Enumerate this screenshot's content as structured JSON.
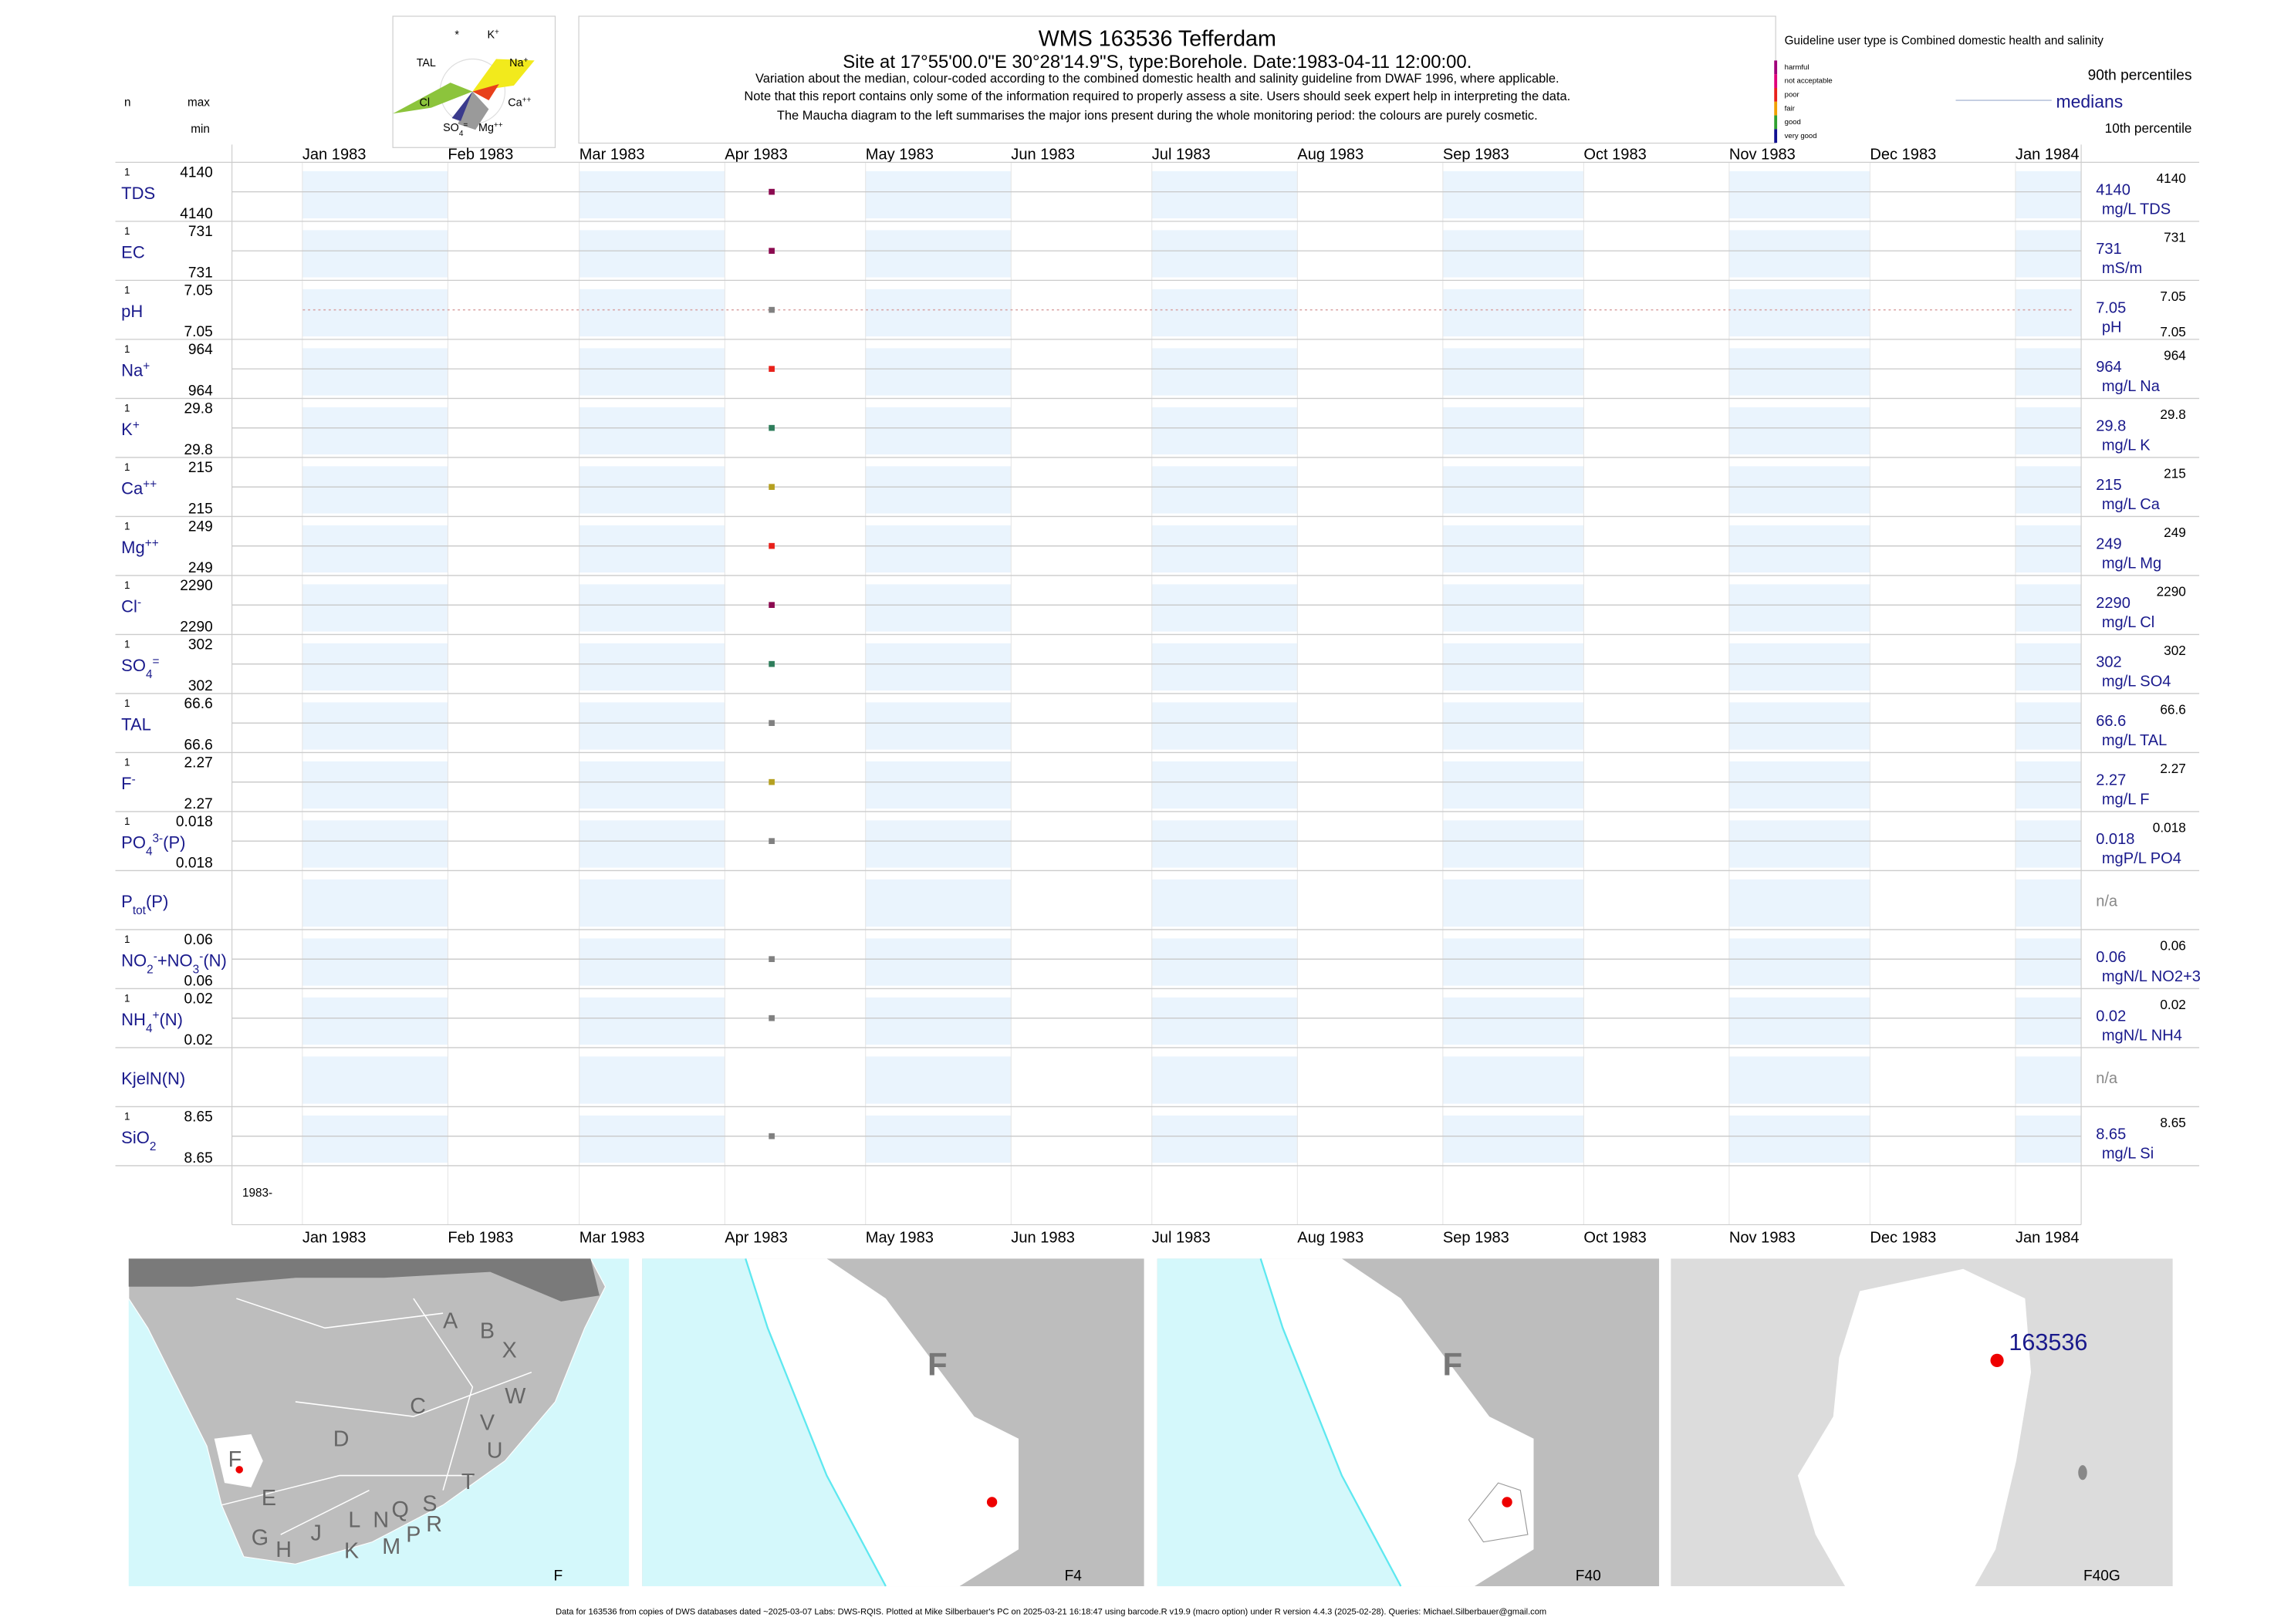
{
  "header": {
    "title": "WMS 163536  Tefferdam",
    "subtitle": "Site at 17°55'00.0\"E 30°28'14.9\"S, type:Borehole. Date:1983-04-11 12:00:00.",
    "notes": [
      "Variation about the median,  colour-coded according to the combined domestic health and salinity guideline from DWAF 1996, where applicable.",
      "Note that this report contains only some of the information required to properly assess a site. Users should seek expert help in interpreting the data.",
      "The Maucha diagram to the left summarises the major ions present during the whole monitoring period: the colours are purely cosmetic."
    ],
    "n_label": "n",
    "max_label": "max",
    "min_label": "min",
    "maucha_labels": [
      [
        [
          "*",
          ""
        ]
      ],
      [
        [
          "K",
          ""
        ],
        [
          "+",
          "sup"
        ]
      ],
      [
        [
          "TAL",
          ""
        ]
      ],
      [
        [
          "Na",
          ""
        ],
        [
          "+",
          "sup"
        ]
      ],
      [
        [
          "Cl",
          ""
        ]
      ],
      [
        [
          "Ca",
          ""
        ],
        [
          "++",
          "sup"
        ]
      ],
      [
        [
          "SO",
          ""
        ],
        [
          "4",
          "sub"
        ],
        [
          "=",
          "sup"
        ]
      ],
      [
        [
          "Mg",
          ""
        ],
        [
          "++",
          "sup"
        ]
      ]
    ]
  },
  "legend": {
    "guideline": "Guideline user type is Combined domestic health and salinity",
    "classes": [
      {
        "label": "harmful",
        "color": "#a0007a"
      },
      {
        "label": "not acceptable",
        "color": "#e0007a"
      },
      {
        "label": "poor",
        "color": "#e8201a"
      },
      {
        "label": "fair",
        "color": "#f0a000"
      },
      {
        "label": "good",
        "color": "#30a030"
      },
      {
        "label": "very good",
        "color": "#101090"
      }
    ],
    "p90": "90th percentiles",
    "median": "medians",
    "p10": "10th percentile"
  },
  "chart_data": {
    "type": "timeseries-panels",
    "xlim": [
      "1982-12-17",
      "1984-01-15"
    ],
    "xticks": [
      {
        "value": "1983-01-01",
        "label": "Jan 1983"
      },
      {
        "value": "1983-02-01",
        "label": "Feb 1983"
      },
      {
        "value": "1983-03-01",
        "label": "Mar 1983"
      },
      {
        "value": "1983-04-01",
        "label": "Apr 1983"
      },
      {
        "value": "1983-05-01",
        "label": "May 1983"
      },
      {
        "value": "1983-06-01",
        "label": "Jun 1983"
      },
      {
        "value": "1983-07-01",
        "label": "Jul 1983"
      },
      {
        "value": "1983-08-01",
        "label": "Aug 1983"
      },
      {
        "value": "1983-09-01",
        "label": "Sep 1983"
      },
      {
        "value": "1983-10-01",
        "label": "Oct 1983"
      },
      {
        "value": "1983-11-01",
        "label": "Nov 1983"
      },
      {
        "value": "1983-12-01",
        "label": "Dec 1983"
      },
      {
        "value": "1984-01-01",
        "label": "Jan 1984"
      }
    ],
    "x": "1983-04-11",
    "bottom_label": "1983-",
    "series": [
      {
        "label": [
          [
            "TDS",
            ""
          ]
        ],
        "n": 1,
        "max": 4140,
        "min": 4140,
        "value": 4140,
        "p90": 4140,
        "unit": "mg/L TDS",
        "color": "#8b0a50"
      },
      {
        "label": [
          [
            "EC",
            ""
          ]
        ],
        "n": 1,
        "max": 731,
        "min": 731,
        "value": 731,
        "p90": 731,
        "unit": "mS/m",
        "color": "#8b0a50"
      },
      {
        "label": [
          [
            "pH",
            ""
          ]
        ],
        "n": 1,
        "max": 7.05,
        "min": 7.05,
        "value": 7.05,
        "p90": 7.05,
        "p10": 7.05,
        "unit": "pH",
        "color": "#808080"
      },
      {
        "label": [
          [
            "Na",
            ""
          ],
          [
            "+",
            "sup"
          ]
        ],
        "n": 1,
        "max": 964,
        "min": 964,
        "value": 964,
        "p90": 964,
        "unit": "mg/L Na",
        "color": "#e8201a"
      },
      {
        "label": [
          [
            "K",
            ""
          ],
          [
            "+",
            "sup"
          ]
        ],
        "n": 1,
        "max": 29.8,
        "min": 29.8,
        "value": 29.8,
        "p90": 29.8,
        "unit": "mg/L K",
        "color": "#2e7d5b"
      },
      {
        "label": [
          [
            "Ca",
            ""
          ],
          [
            "++",
            "sup"
          ]
        ],
        "n": 1,
        "max": 215,
        "min": 215,
        "value": 215,
        "p90": 215,
        "unit": "mg/L Ca",
        "color": "#b5a020"
      },
      {
        "label": [
          [
            "Mg",
            ""
          ],
          [
            "++",
            "sup"
          ]
        ],
        "n": 1,
        "max": 249,
        "min": 249,
        "value": 249,
        "p90": 249,
        "unit": "mg/L Mg",
        "color": "#e8201a"
      },
      {
        "label": [
          [
            "Cl",
            ""
          ],
          [
            "-",
            "sup"
          ]
        ],
        "n": 1,
        "max": 2290,
        "min": 2290,
        "value": 2290,
        "p90": 2290,
        "unit": "mg/L Cl",
        "color": "#8b0a50"
      },
      {
        "label": [
          [
            "SO",
            ""
          ],
          [
            "4",
            "sub"
          ],
          [
            "=",
            "sup"
          ]
        ],
        "n": 1,
        "max": 302,
        "min": 302,
        "value": 302,
        "p90": 302,
        "unit": "mg/L SO4",
        "color": "#2e7d5b"
      },
      {
        "label": [
          [
            "TAL",
            ""
          ]
        ],
        "n": 1,
        "max": 66.6,
        "min": 66.6,
        "value": 66.6,
        "p90": 66.6,
        "unit": "mg/L TAL",
        "color": "#808080"
      },
      {
        "label": [
          [
            "F",
            ""
          ],
          [
            "-",
            "sup"
          ]
        ],
        "n": 1,
        "max": 2.27,
        "min": 2.27,
        "value": 2.27,
        "p90": 2.27,
        "unit": "mg/L F",
        "color": "#b5a020"
      },
      {
        "label": [
          [
            "PO",
            ""
          ],
          [
            "4",
            "sub"
          ],
          [
            "3-",
            "sup"
          ],
          [
            "(P)",
            ""
          ]
        ],
        "n": 1,
        "max": 0.018,
        "min": 0.018,
        "value": 0.018,
        "p90": 0.018,
        "unit": "mgP/L PO4",
        "color": "#808080"
      },
      {
        "label": [
          [
            "P",
            ""
          ],
          [
            "tot",
            "sub"
          ],
          [
            "(P)",
            ""
          ]
        ],
        "na": "n/a"
      },
      {
        "label": [
          [
            "NO",
            ""
          ],
          [
            "2",
            "sub"
          ],
          [
            "-",
            "sup"
          ],
          [
            "+NO",
            ""
          ],
          [
            "3",
            "sub"
          ],
          [
            "-",
            "sup"
          ],
          [
            "(N)",
            ""
          ]
        ],
        "n": 1,
        "max": 0.06,
        "min": 0.06,
        "value": 0.06,
        "p90": 0.06,
        "unit": "mgN/L NO2+3",
        "color": "#808080"
      },
      {
        "label": [
          [
            "NH",
            ""
          ],
          [
            "4",
            "sub"
          ],
          [
            "+",
            "sup"
          ],
          [
            "(N)",
            ""
          ]
        ],
        "n": 1,
        "max": 0.02,
        "min": 0.02,
        "value": 0.02,
        "p90": 0.02,
        "unit": "mgN/L NH4",
        "color": "#808080"
      },
      {
        "label": [
          [
            "KjelN(N)",
            ""
          ]
        ],
        "na": "n/a"
      },
      {
        "label": [
          [
            "SiO",
            ""
          ],
          [
            "2",
            "sub"
          ]
        ],
        "n": 1,
        "max": 8.65,
        "min": 8.65,
        "value": 8.65,
        "p90": 8.65,
        "unit": "mg/L Si",
        "color": "#808080"
      }
    ]
  },
  "maps": [
    {
      "label": "F",
      "letters": [
        "A",
        "B",
        "X",
        "W",
        "C",
        "V",
        "U",
        "D",
        "F",
        "E",
        "T",
        "S",
        "R",
        "Q",
        "N",
        "L",
        "P",
        "M",
        "K",
        "J",
        "H",
        "G"
      ]
    },
    {
      "label": "F4",
      "letters": [
        "F"
      ]
    },
    {
      "label": "F40",
      "letters": [
        "F"
      ]
    },
    {
      "label": "F40G",
      "site": "163536"
    }
  ],
  "footer": "Data for 163536 from copies of DWS databases dated ~2025-03-07 Labs: DWS-RQIS. Plotted at Mike Silberbauer's PC on 2025-03-21 16:18:47 using barcode.R v19.9 (macro option) under R version 4.4.3 (2025-02-28). Queries: Michael.Silberbauer@gmail.com"
}
